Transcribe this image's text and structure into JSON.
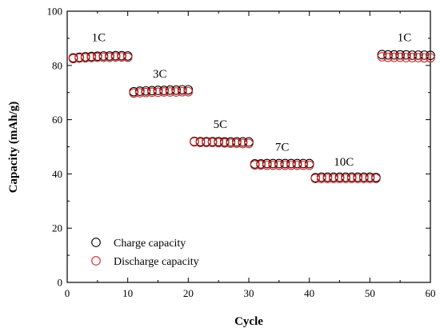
{
  "chart_data": {
    "type": "scatter",
    "xlabel": "Cycle",
    "ylabel": "Capacity (mAh/g)",
    "xlim": [
      0,
      60
    ],
    "ylim": [
      0,
      100
    ],
    "x_ticks": [
      "0",
      "10",
      "20",
      "30",
      "40",
      "50",
      "60"
    ],
    "y_ticks": [
      "0",
      "20",
      "40",
      "60",
      "80",
      "100"
    ],
    "grid": false,
    "legend_position": "bottom-left",
    "colors": {
      "charge": "#000000",
      "discharge": "#d62728",
      "axis": "#000000"
    },
    "annotations": [
      {
        "text": "1C",
        "x": 5.2,
        "y": 89
      },
      {
        "text": "3C",
        "x": 15.3,
        "y": 75.5
      },
      {
        "text": "5C",
        "x": 25.3,
        "y": 57
      },
      {
        "text": "7C",
        "x": 35.5,
        "y": 48.5
      },
      {
        "text": "10C",
        "x": 45.7,
        "y": 43
      },
      {
        "text": "1C",
        "x": 55.7,
        "y": 89
      }
    ],
    "series": [
      {
        "name": "Charge capacity",
        "color": "#000000",
        "x": [
          1,
          2,
          3,
          4,
          5,
          6,
          7,
          8,
          9,
          10,
          11,
          12,
          13,
          14,
          15,
          16,
          17,
          18,
          19,
          20,
          21,
          22,
          23,
          24,
          25,
          26,
          27,
          28,
          29,
          30,
          31,
          32,
          33,
          34,
          35,
          36,
          37,
          38,
          39,
          40,
          41,
          42,
          43,
          44,
          45,
          46,
          47,
          48,
          49,
          50,
          51,
          52,
          53,
          54,
          55,
          56,
          57,
          58,
          59,
          60
        ],
        "y": [
          82.8,
          83.0,
          83.2,
          83.3,
          83.4,
          83.5,
          83.5,
          83.6,
          83.6,
          83.5,
          70.3,
          70.5,
          70.6,
          70.7,
          70.8,
          70.8,
          70.9,
          70.9,
          71.0,
          71.0,
          52.0,
          51.9,
          51.9,
          51.9,
          51.9,
          51.8,
          51.8,
          51.8,
          51.8,
          51.8,
          43.7,
          43.7,
          43.8,
          43.8,
          43.8,
          43.8,
          43.8,
          43.8,
          43.8,
          43.8,
          38.6,
          38.8,
          38.8,
          38.8,
          38.8,
          38.8,
          38.8,
          38.8,
          38.8,
          38.8,
          38.7,
          84.0,
          83.9,
          83.9,
          83.9,
          83.9,
          83.8,
          83.8,
          83.8,
          83.7
        ]
      },
      {
        "name": "Discharge capacity",
        "color": "#d62728",
        "x": [
          1,
          2,
          3,
          4,
          5,
          6,
          7,
          8,
          9,
          10,
          11,
          12,
          13,
          14,
          15,
          16,
          17,
          18,
          19,
          20,
          21,
          22,
          23,
          24,
          25,
          26,
          27,
          28,
          29,
          30,
          31,
          32,
          33,
          34,
          35,
          36,
          37,
          38,
          39,
          40,
          41,
          42,
          43,
          44,
          45,
          46,
          47,
          48,
          49,
          50,
          51,
          52,
          53,
          54,
          55,
          56,
          57,
          58,
          59,
          60
        ],
        "y": [
          82.5,
          82.7,
          82.8,
          82.9,
          83.0,
          83.0,
          83.0,
          83.1,
          83.1,
          83.0,
          69.8,
          69.9,
          70.0,
          70.1,
          70.1,
          70.2,
          70.2,
          70.2,
          70.3,
          70.3,
          51.8,
          51.6,
          51.6,
          51.6,
          51.5,
          51.4,
          51.3,
          51.3,
          51.2,
          51.2,
          43.3,
          43.3,
          43.2,
          43.2,
          43.2,
          43.2,
          43.2,
          43.2,
          43.2,
          43.2,
          38.3,
          38.3,
          38.3,
          38.3,
          38.3,
          38.3,
          38.3,
          38.3,
          38.3,
          38.3,
          38.3,
          83.2,
          83.0,
          83.0,
          83.0,
          82.9,
          82.9,
          82.9,
          82.8,
          82.8
        ]
      }
    ]
  }
}
